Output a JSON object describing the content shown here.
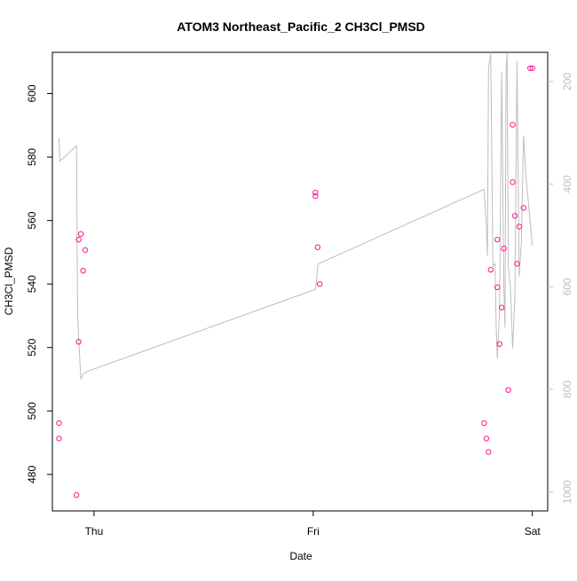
{
  "chart_data": {
    "type": "scatter",
    "title": "ATOM3 Northeast_Pacific_2 CH3Cl_PMSD",
    "xlabel": "Date",
    "ylabel": "CH3Cl_PMSD",
    "x_tick_labels": [
      "Thu",
      "Fri",
      "Sat"
    ],
    "x_ticks": [
      0,
      1,
      2
    ],
    "xlim": [
      -0.19,
      2.07
    ],
    "ylim": [
      468.5,
      613.0
    ],
    "y_ticks": [
      480,
      500,
      520,
      540,
      560,
      580,
      600
    ],
    "y2_ticks": [
      200,
      400,
      600,
      800,
      1000
    ],
    "y2_lim": [
      1037,
      143
    ],
    "grid": false,
    "colors": {
      "points": "#ff1493",
      "secondary_line": "#bebebe",
      "right_axis": "#bebebe"
    },
    "series": [
      {
        "axis": "left",
        "style": "points",
        "x": [
          -0.16,
          -0.16,
          -0.08,
          -0.07,
          -0.07,
          -0.06,
          -0.05,
          -0.04,
          1.01,
          1.01,
          1.02,
          1.03,
          1.78,
          1.79,
          1.8,
          1.81,
          1.84,
          1.84,
          1.85,
          1.86,
          1.87,
          1.89,
          1.91,
          1.91,
          1.92,
          1.93,
          1.94,
          1.96,
          1.99,
          2.0
        ],
        "y": [
          496.2,
          491.3,
          473.5,
          521.8,
          554.0,
          555.8,
          544.2,
          550.7,
          568.8,
          567.7,
          551.6,
          540.0,
          496.2,
          491.3,
          487.1,
          544.5,
          554.0,
          539.0,
          521.1,
          532.6,
          551.2,
          506.6,
          572.1,
          590.2,
          561.5,
          546.4,
          558.1,
          564.0,
          608.0,
          608.0
        ]
      },
      {
        "axis": "right",
        "style": "line",
        "x": [
          -0.16,
          -0.155,
          -0.08,
          -0.075,
          -0.07,
          -0.06,
          -0.05,
          -0.03,
          1.01,
          1.015,
          1.02,
          1.025,
          1.78,
          1.79,
          1.795,
          1.8,
          1.81,
          1.82,
          1.83,
          1.835,
          1.84,
          1.85,
          1.86,
          1.87,
          1.875,
          1.88,
          1.885,
          1.89,
          1.9,
          1.91,
          1.92,
          1.93,
          1.94,
          1.95,
          1.96,
          1.97,
          2.0
        ],
        "y": [
          310,
          355,
          325,
          650,
          700,
          780,
          770,
          765,
          605,
          590,
          560,
          555,
          410,
          480,
          540,
          175,
          145,
          560,
          555,
          680,
          740,
          650,
          180,
          600,
          680,
          175,
          145,
          560,
          600,
          720,
          620,
          160,
          580,
          510,
          305,
          380,
          520
        ]
      }
    ]
  }
}
